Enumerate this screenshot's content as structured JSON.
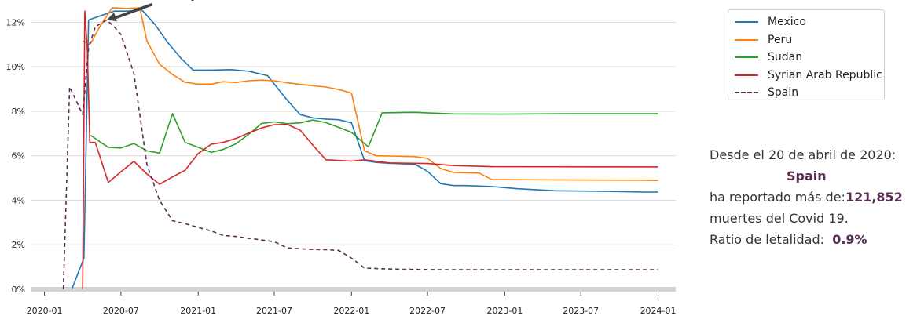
{
  "chart_data": {
    "type": "line",
    "title": "",
    "xlabel": "",
    "ylabel": "",
    "ylim": [
      0,
      0.13
    ],
    "y_ticks": [
      0,
      0.02,
      0.04,
      0.06,
      0.08,
      0.1,
      0.12
    ],
    "y_tick_labels": [
      "0%",
      "2%",
      "4%",
      "6%",
      "8%",
      "10%",
      "12%"
    ],
    "x_ticks": [
      "2020-01",
      "2020-07",
      "2021-01",
      "2021-07",
      "2022-01",
      "2022-07",
      "2023-01",
      "2023-07",
      "2024-01"
    ],
    "x_range": [
      "2019-12-01",
      "2024-02-12"
    ],
    "grid": "horizontal",
    "legend_position": "top-right",
    "annotation": {
      "text": "Max: Spain",
      "date": "2020-05-28",
      "value": 0.121
    },
    "series": [
      {
        "name": "Mexico",
        "color": "#1f77b4",
        "dash": false,
        "points": [
          [
            "2020-03-06",
            0.0
          ],
          [
            "2020-04-04",
            0.014
          ],
          [
            "2020-04-15",
            0.121
          ],
          [
            "2020-05-15",
            0.123
          ],
          [
            "2020-06-15",
            0.125
          ],
          [
            "2020-07-15",
            0.125
          ],
          [
            "2020-08-20",
            0.1255
          ],
          [
            "2020-09-20",
            0.119
          ],
          [
            "2020-10-20",
            0.111
          ],
          [
            "2020-11-20",
            0.104
          ],
          [
            "2020-12-20",
            0.0985
          ],
          [
            "2021-02-01",
            0.0985
          ],
          [
            "2021-03-20",
            0.0987
          ],
          [
            "2021-05-01",
            0.098
          ],
          [
            "2021-06-15",
            0.096
          ],
          [
            "2021-08-01",
            0.085
          ],
          [
            "2021-09-01",
            0.0785
          ],
          [
            "2021-10-01",
            0.077
          ],
          [
            "2021-11-01",
            0.0765
          ],
          [
            "2021-12-01",
            0.0762
          ],
          [
            "2022-01-01",
            0.0748
          ],
          [
            "2022-02-01",
            0.0578
          ],
          [
            "2022-03-01",
            0.057
          ],
          [
            "2022-04-01",
            0.0566
          ],
          [
            "2022-06-01",
            0.0562
          ],
          [
            "2022-07-01",
            0.053
          ],
          [
            "2022-08-01",
            0.0475
          ],
          [
            "2022-09-01",
            0.0466
          ],
          [
            "2022-10-01",
            0.0466
          ],
          [
            "2022-12-01",
            0.0462
          ],
          [
            "2023-02-01",
            0.0452
          ],
          [
            "2023-05-01",
            0.0443
          ],
          [
            "2023-09-01",
            0.044
          ],
          [
            "2023-12-01",
            0.0437
          ],
          [
            "2024-01-01",
            0.0437
          ]
        ]
      },
      {
        "name": "Peru",
        "color": "#ff7f0e",
        "dash": false,
        "points": [
          [
            "2020-04-01",
            0.1115
          ],
          [
            "2020-04-20",
            0.1105
          ],
          [
            "2020-05-10",
            0.1175
          ],
          [
            "2020-06-10",
            0.1265
          ],
          [
            "2020-07-15",
            0.1262
          ],
          [
            "2020-08-15",
            0.1265
          ],
          [
            "2020-09-01",
            0.1115
          ],
          [
            "2020-10-01",
            0.1012
          ],
          [
            "2020-11-01",
            0.0965
          ],
          [
            "2020-12-01",
            0.093
          ],
          [
            "2021-01-01",
            0.0922
          ],
          [
            "2021-02-01",
            0.0922
          ],
          [
            "2021-03-01",
            0.0933
          ],
          [
            "2021-04-01",
            0.0929
          ],
          [
            "2021-05-01",
            0.0937
          ],
          [
            "2021-06-01",
            0.094
          ],
          [
            "2021-07-01",
            0.0937
          ],
          [
            "2021-08-01",
            0.0928
          ],
          [
            "2021-09-01",
            0.0921
          ],
          [
            "2021-10-01",
            0.0915
          ],
          [
            "2021-11-01",
            0.0909
          ],
          [
            "2021-12-01",
            0.0898
          ],
          [
            "2022-01-01",
            0.0882
          ],
          [
            "2022-02-01",
            0.0622
          ],
          [
            "2022-03-01",
            0.06
          ],
          [
            "2022-05-01",
            0.0598
          ],
          [
            "2022-06-01",
            0.0596
          ],
          [
            "2022-07-01",
            0.0588
          ],
          [
            "2022-08-01",
            0.0543
          ],
          [
            "2022-09-01",
            0.0525
          ],
          [
            "2022-11-01",
            0.0522
          ],
          [
            "2022-12-01",
            0.0493
          ],
          [
            "2023-03-01",
            0.0492
          ],
          [
            "2023-12-01",
            0.049
          ],
          [
            "2024-01-01",
            0.0489
          ]
        ]
      },
      {
        "name": "Sudan",
        "color": "#2ca02c",
        "dash": false,
        "points": [
          [
            "2020-04-20",
            0.0692
          ],
          [
            "2020-05-10",
            0.0665
          ],
          [
            "2020-06-01",
            0.0638
          ],
          [
            "2020-07-01",
            0.0635
          ],
          [
            "2020-08-01",
            0.0655
          ],
          [
            "2020-09-01",
            0.0622
          ],
          [
            "2020-10-01",
            0.0612
          ],
          [
            "2020-11-01",
            0.0789
          ],
          [
            "2020-12-01",
            0.066
          ],
          [
            "2021-01-01",
            0.0638
          ],
          [
            "2021-02-01",
            0.0615
          ],
          [
            "2021-03-01",
            0.0628
          ],
          [
            "2021-04-01",
            0.0654
          ],
          [
            "2021-05-01",
            0.0696
          ],
          [
            "2021-06-01",
            0.0745
          ],
          [
            "2021-07-01",
            0.0752
          ],
          [
            "2021-08-01",
            0.0744
          ],
          [
            "2021-09-01",
            0.0748
          ],
          [
            "2021-10-01",
            0.0761
          ],
          [
            "2021-11-01",
            0.0749
          ],
          [
            "2021-12-01",
            0.0728
          ],
          [
            "2022-01-01",
            0.0705
          ],
          [
            "2022-02-10",
            0.064
          ],
          [
            "2022-03-15",
            0.0793
          ],
          [
            "2022-06-01",
            0.0795
          ],
          [
            "2022-09-01",
            0.0788
          ],
          [
            "2023-01-01",
            0.0787
          ],
          [
            "2023-06-01",
            0.0789
          ],
          [
            "2024-01-01",
            0.0789
          ]
        ]
      },
      {
        "name": "Syrian Arab Republic",
        "color": "#d62728",
        "dash": false,
        "points": [
          [
            "2020-04-01",
            0.0
          ],
          [
            "2020-04-06",
            0.125
          ],
          [
            "2020-04-12",
            0.108
          ],
          [
            "2020-04-18",
            0.066
          ],
          [
            "2020-05-01",
            0.066
          ],
          [
            "2020-06-01",
            0.048
          ],
          [
            "2020-07-01",
            0.0528
          ],
          [
            "2020-08-01",
            0.0575
          ],
          [
            "2020-09-01",
            0.0518
          ],
          [
            "2020-10-01",
            0.0472
          ],
          [
            "2020-11-01",
            0.0505
          ],
          [
            "2020-12-01",
            0.0535
          ],
          [
            "2021-01-01",
            0.061
          ],
          [
            "2021-02-01",
            0.0652
          ],
          [
            "2021-03-01",
            0.066
          ],
          [
            "2021-04-01",
            0.0678
          ],
          [
            "2021-05-01",
            0.0702
          ],
          [
            "2021-06-01",
            0.0725
          ],
          [
            "2021-07-01",
            0.074
          ],
          [
            "2021-08-01",
            0.0741
          ],
          [
            "2021-09-01",
            0.0715
          ],
          [
            "2021-10-01",
            0.0648
          ],
          [
            "2021-11-01",
            0.0582
          ],
          [
            "2022-01-01",
            0.0576
          ],
          [
            "2022-02-01",
            0.0582
          ],
          [
            "2022-04-01",
            0.0568
          ],
          [
            "2022-07-01",
            0.0565
          ],
          [
            "2022-09-01",
            0.0556
          ],
          [
            "2022-12-01",
            0.0551
          ],
          [
            "2024-01-01",
            0.055
          ]
        ]
      },
      {
        "name": "Spain",
        "color": "#5a2d52",
        "dash": true,
        "points": [
          [
            "2020-02-15",
            0.0
          ],
          [
            "2020-03-01",
            0.091
          ],
          [
            "2020-04-01",
            0.0785
          ],
          [
            "2020-04-15",
            0.1085
          ],
          [
            "2020-05-01",
            0.118
          ],
          [
            "2020-05-28",
            0.121
          ],
          [
            "2020-06-15",
            0.118
          ],
          [
            "2020-07-01",
            0.1145
          ],
          [
            "2020-08-01",
            0.097
          ],
          [
            "2020-09-01",
            0.056
          ],
          [
            "2020-10-01",
            0.04
          ],
          [
            "2020-11-01",
            0.0308
          ],
          [
            "2020-12-01",
            0.0295
          ],
          [
            "2021-01-01",
            0.0278
          ],
          [
            "2021-02-01",
            0.0262
          ],
          [
            "2021-03-01",
            0.0242
          ],
          [
            "2021-04-01",
            0.0237
          ],
          [
            "2021-05-01",
            0.0229
          ],
          [
            "2021-06-01",
            0.0222
          ],
          [
            "2021-07-01",
            0.0214
          ],
          [
            "2021-08-01",
            0.0186
          ],
          [
            "2021-09-01",
            0.0182
          ],
          [
            "2021-10-01",
            0.0179
          ],
          [
            "2021-11-01",
            0.0178
          ],
          [
            "2021-12-01",
            0.0175
          ],
          [
            "2022-01-01",
            0.014
          ],
          [
            "2022-02-01",
            0.0095
          ],
          [
            "2022-03-01",
            0.0093
          ],
          [
            "2022-05-01",
            0.009
          ],
          [
            "2022-08-01",
            0.0088
          ],
          [
            "2023-06-01",
            0.0088
          ],
          [
            "2024-01-01",
            0.0088
          ]
        ]
      }
    ]
  },
  "info_panel": {
    "line1": "Desde el 20 de abril de 2020:",
    "country": "Spain",
    "line3_prefix": "ha reportado más de:",
    "line3_value": "121,852",
    "line4": "muertes del Covid 19.",
    "line5_prefix": "Ratio de letalidad: ",
    "line5_value": "0.9%"
  }
}
